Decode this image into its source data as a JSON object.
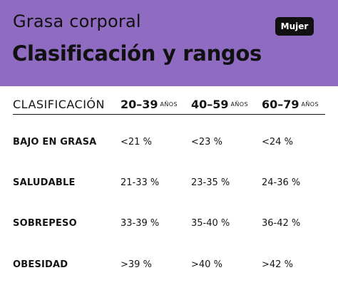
{
  "header": {
    "subtitle": "Grasa corporal",
    "title": "Clasificación y rangos",
    "badge": "Mujer",
    "background_color": "#8f6cc2"
  },
  "table": {
    "columns": {
      "label": "CLASIFICACIÓN",
      "groups": [
        {
          "range": "20–39",
          "unit": "AÑOS"
        },
        {
          "range": "40–59",
          "unit": "AÑOS"
        },
        {
          "range": "60–79",
          "unit": "AÑOS"
        }
      ]
    },
    "rows": [
      {
        "label": "BAJO EN GRASA",
        "values": [
          "<21 %",
          "<23 %",
          "<24 %"
        ]
      },
      {
        "label": "SALUDABLE",
        "values": [
          "21-33 %",
          "23-35 %",
          "24-36 %"
        ]
      },
      {
        "label": "SOBREPESO",
        "values": [
          "33-39 %",
          "35-40 %",
          "36-42 %"
        ]
      },
      {
        "label": "OBESIDAD",
        "values": [
          ">39 %",
          ">40 %",
          ">42 %"
        ]
      }
    ]
  }
}
